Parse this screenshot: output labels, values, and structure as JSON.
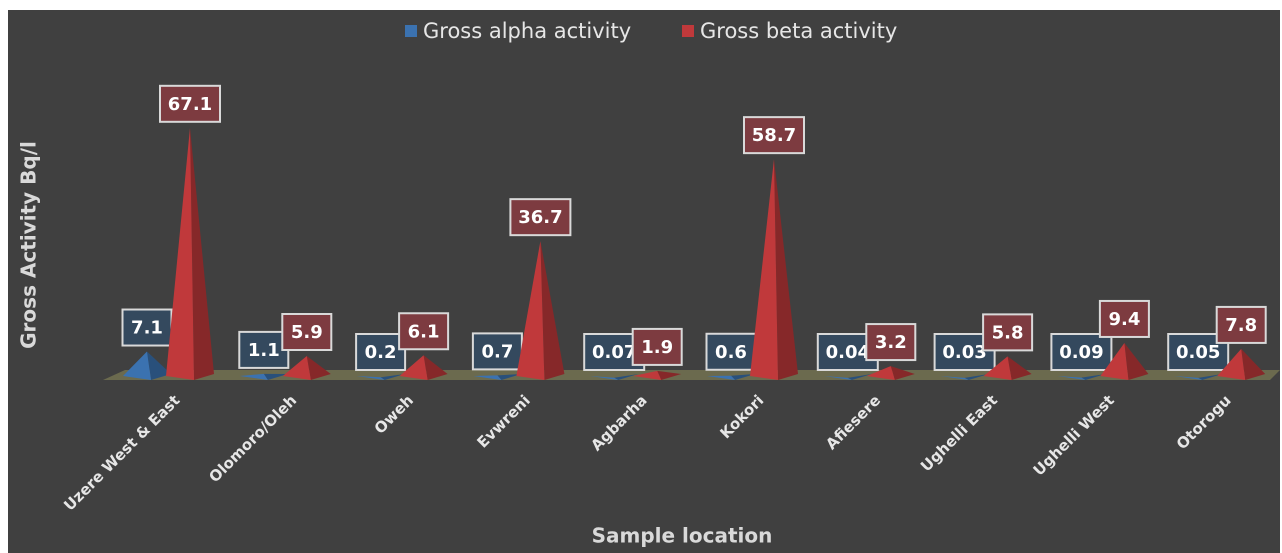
{
  "chart_data": {
    "type": "pyramid3d",
    "x_label": "Sample location",
    "y_label": "Gross Activity Bq/l",
    "categories": [
      "Uzere West & East",
      "Olomoro/Oleh",
      "Oweh",
      "Evwreni",
      "Agbarha",
      "Kokori",
      "Afiesere",
      "Ughelli East",
      "Ughelli West",
      "Otorogu"
    ],
    "series": [
      {
        "name": "Gross alpha activity",
        "color": "#3b72b0",
        "values": [
          7.1,
          1.1,
          0.2,
          0.7,
          0.07,
          0.6,
          0.04,
          0.03,
          0.09,
          0.05
        ]
      },
      {
        "name": "Gross beta activity",
        "color": "#c0393b",
        "values": [
          67.1,
          5.9,
          6.1,
          36.7,
          1.9,
          58.7,
          3.2,
          5.8,
          9.4,
          7.8
        ]
      }
    ],
    "ylim": [
      0,
      70
    ],
    "legend": "top"
  }
}
